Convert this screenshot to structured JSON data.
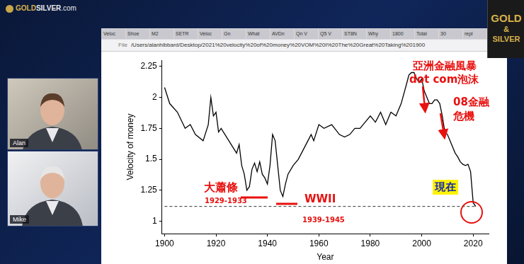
{
  "chart_data": {
    "type": "line",
    "x": [
      1900,
      1902,
      1905,
      1908,
      1910,
      1912,
      1915,
      1917,
      1918,
      1919,
      1920,
      1921,
      1922,
      1925,
      1928,
      1929,
      1930,
      1931,
      1932,
      1933,
      1934,
      1935,
      1936,
      1937,
      1938,
      1939,
      1940,
      1941,
      1942,
      1943,
      1944,
      1945,
      1946,
      1947,
      1948,
      1950,
      1952,
      1955,
      1957,
      1958,
      1960,
      1962,
      1965,
      1968,
      1970,
      1972,
      1974,
      1976,
      1978,
      1980,
      1982,
      1984,
      1986,
      1988,
      1990,
      1992,
      1994,
      1995,
      1996,
      1997,
      1998,
      1999,
      2000,
      2001,
      2002,
      2003,
      2004,
      2005,
      2006,
      2007,
      2008,
      2009,
      2010,
      2011,
      2012,
      2013,
      2014,
      2015,
      2016,
      2017,
      2018,
      2019,
      2020,
      2021
    ],
    "values": [
      2.08,
      1.95,
      1.88,
      1.75,
      1.78,
      1.7,
      1.65,
      1.78,
      2.0,
      1.85,
      1.88,
      1.72,
      1.75,
      1.65,
      1.55,
      1.62,
      1.45,
      1.38,
      1.25,
      1.28,
      1.42,
      1.47,
      1.4,
      1.48,
      1.38,
      1.35,
      1.3,
      1.45,
      1.7,
      1.65,
      1.45,
      1.25,
      1.2,
      1.3,
      1.38,
      1.45,
      1.5,
      1.62,
      1.7,
      1.65,
      1.78,
      1.75,
      1.78,
      1.7,
      1.68,
      1.7,
      1.75,
      1.75,
      1.8,
      1.85,
      1.8,
      1.88,
      1.78,
      1.88,
      1.85,
      1.95,
      2.1,
      2.18,
      2.2,
      2.2,
      2.15,
      2.12,
      2.15,
      2.05,
      2.0,
      1.95,
      1.95,
      1.98,
      1.98,
      1.95,
      1.85,
      1.72,
      1.7,
      1.65,
      1.6,
      1.55,
      1.52,
      1.48,
      1.46,
      1.45,
      1.46,
      1.4,
      1.15,
      1.12
    ],
    "color": "#000000",
    "xlabel": "Year",
    "ylabel": "Velocity of money",
    "xlim": [
      1899,
      2026
    ],
    "xticks": [
      1900,
      1920,
      1940,
      1960,
      1980,
      2000,
      2020
    ],
    "ylim": [
      0.9,
      2.3
    ],
    "yticks": [
      1,
      1.25,
      1.5,
      1.75,
      2,
      2.25
    ],
    "grid": false,
    "hline": {
      "value": 1.12,
      "line_style": "dashed"
    },
    "annotations": {
      "asia": "亞洲金融風暴",
      "dotcom": "dot com泡沫",
      "gfc": [
        "08金融",
        "危機"
      ],
      "depression": "大蕭條",
      "depression_years": "1929-1933",
      "ww2": "WWII",
      "ww2_years": "1939-1945",
      "now": "現在"
    }
  },
  "page": {
    "logo": [
      "GOLD",
      "SILVER",
      ".com"
    ],
    "hosts": [
      "Alan",
      "Mike"
    ],
    "book": [
      "GOLD",
      "&",
      "SILVER"
    ],
    "tabs": [
      "Veloc",
      "Shoe",
      "M2",
      "SETR",
      "Veloc",
      "Gn",
      "What",
      "AVDn",
      "Qn V",
      "Q5 V",
      "ST8N",
      "Why",
      "1800",
      "Total",
      "30",
      "repl"
    ],
    "address": [
      "File",
      "/Users/alanhibbard/Desktop/2021%20velocity%20of%20money%20VOM%20I%20The%20Great%20Taking%201900"
    ]
  }
}
